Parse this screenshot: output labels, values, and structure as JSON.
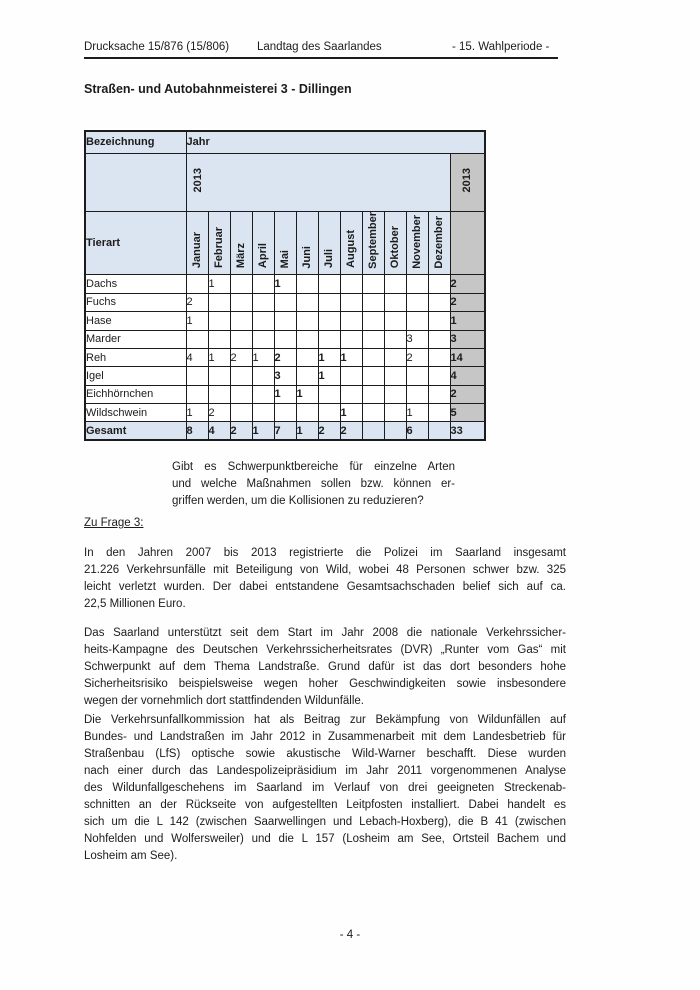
{
  "header": {
    "left": "Drucksache 15/876 (15/806)",
    "center": "Landtag des Saarlandes",
    "right": "- 15. Wahlperiode -"
  },
  "title": "Straßen- und Autobahnmeisterei 3 - Dillingen",
  "table": {
    "corner_label": "Bezeichnung",
    "year_label": "Jahr",
    "year_value": "2013",
    "total_year_value": "2013",
    "row_header": "Tierart",
    "months": [
      "Januar",
      "Februar",
      "März",
      "April",
      "Mai",
      "Juni",
      "Juli",
      "August",
      "September",
      "Oktober",
      "November",
      "Dezember"
    ],
    "bold_value_columns": [
      4,
      5,
      6,
      7
    ],
    "rows": [
      {
        "name": "Dachs",
        "values": [
          "",
          "1",
          "",
          "",
          "1",
          "",
          "",
          "",
          "",
          "",
          "",
          ""
        ],
        "total": "2"
      },
      {
        "name": "Fuchs",
        "values": [
          "2",
          "",
          "",
          "",
          "",
          "",
          "",
          "",
          "",
          "",
          "",
          ""
        ],
        "total": "2"
      },
      {
        "name": "Hase",
        "values": [
          "1",
          "",
          "",
          "",
          "",
          "",
          "",
          "",
          "",
          "",
          "",
          ""
        ],
        "total": "1"
      },
      {
        "name": "Marder",
        "values": [
          "",
          "",
          "",
          "",
          "",
          "",
          "",
          "",
          "",
          "",
          "3",
          ""
        ],
        "total": "3"
      },
      {
        "name": "Reh",
        "values": [
          "4",
          "1",
          "2",
          "1",
          "2",
          "",
          "1",
          "1",
          "",
          "",
          "2",
          ""
        ],
        "total": "14"
      },
      {
        "name": "Igel",
        "values": [
          "",
          "",
          "",
          "",
          "3",
          "",
          "1",
          "",
          "",
          "",
          "",
          ""
        ],
        "total": "4"
      },
      {
        "name": "Eichhörnchen",
        "values": [
          "",
          "",
          "",
          "",
          "1",
          "1",
          "",
          "",
          "",
          "",
          "",
          ""
        ],
        "total": "2"
      },
      {
        "name": "Wildschwein",
        "values": [
          "1",
          "2",
          "",
          "",
          "",
          "",
          "",
          "1",
          "",
          "",
          "1",
          ""
        ],
        "total": "5"
      }
    ],
    "total_row": {
      "name": "Gesamt",
      "values": [
        "8",
        "4",
        "2",
        "1",
        "7",
        "1",
        "2",
        "2",
        "",
        "",
        "6",
        ""
      ],
      "total": "33"
    }
  },
  "quote_lines": [
    "Gibt es Schwerpunktbereiche für einzelne Arten",
    "und welche Maßnahmen sollen bzw. können er-",
    "griffen werden, um die Kollisionen zu reduzieren?"
  ],
  "zu_frage_label": "Zu Frage 3:",
  "paragraphs": {
    "p1": [
      "In den Jahren 2007 bis 2013 registrierte die Polizei im Saarland insgesamt",
      "21.226 Verkehrsunfälle mit Beteiligung von Wild, wobei 48 Personen schwer bzw. 325",
      "leicht verletzt wurden. Der dabei entstandene Gesamtsachschaden belief sich auf ca.",
      "22,5 Millionen Euro."
    ],
    "p2": [
      "Das Saarland unterstützt seit dem Start im Jahr 2008 die nationale Verkehrssicher-",
      "heits-Kampagne des Deutschen Verkehrssicherheitsrates (DVR) „Runter vom Gas“ mit",
      "Schwerpunkt auf dem Thema Landstraße. Grund dafür ist das dort besonders hohe",
      "Sicherheitsrisiko beispielsweise wegen hoher Geschwindigkeiten sowie insbesondere",
      "wegen der vornehmlich dort stattfindenden Wildunfälle."
    ],
    "p3": [
      "Die Verkehrsunfallkommission hat als Beitrag zur Bekämpfung von Wildunfällen auf",
      "Bundes- und Landstraßen im Jahr 2012 in Zusammenarbeit mit dem Landesbetrieb für",
      "Straßenbau (LfS) optische sowie akustische Wild-Warner beschafft. Diese wurden",
      "nach einer durch das Landespolizeipräsidium im Jahr 2011 vorgenommenen Analyse",
      "des Wildunfallgeschehens im Saarland im Verlauf von drei geeigneten Streckenab-",
      "schnitten an der Rückseite von aufgestellten Leitpfosten installiert. Dabei handelt es",
      "sich um die L 142 (zwischen Saarwellingen und Lebach-Hoxberg), die B 41 (zwischen",
      "Nohfelden und Wolfersweiler) und die L 157 (Losheim am See, Ortsteil Bachem und",
      "Losheim am See)."
    ]
  },
  "footer": "- 4 -",
  "colors": {
    "header_fill": "#dbe5f1",
    "total_column_fill": "#c6c6c6",
    "border": "#1c1c1c"
  }
}
